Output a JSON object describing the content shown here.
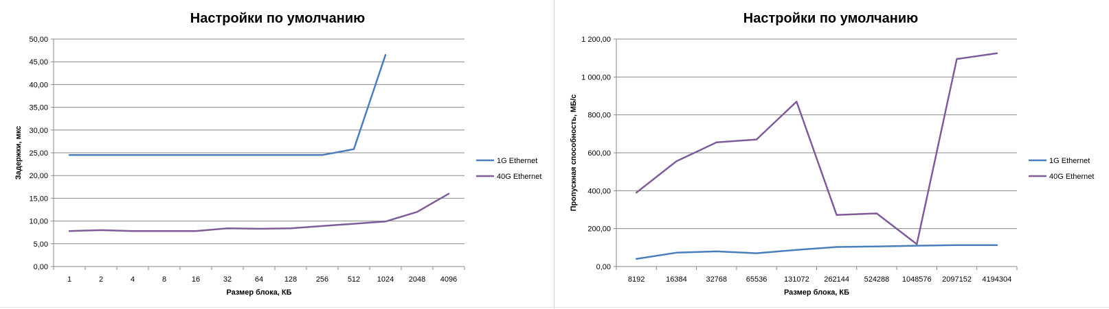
{
  "chart_data": [
    {
      "type": "line",
      "title": "Настройки по умолчанию",
      "xlabel": "Размер блока, КБ",
      "ylabel": "Задержки, мкс",
      "categories": [
        "1",
        "2",
        "4",
        "8",
        "16",
        "32",
        "64",
        "128",
        "256",
        "512",
        "1024",
        "2048",
        "4096"
      ],
      "ylim": [
        0,
        50
      ],
      "yticks": [
        "0,00",
        "5,00",
        "10,00",
        "15,00",
        "20,00",
        "25,00",
        "30,00",
        "35,00",
        "40,00",
        "45,00",
        "50,00"
      ],
      "grid": true,
      "legend": "right",
      "series": [
        {
          "name": "1G Ethernet",
          "color": "#4a7ebb",
          "values": [
            24.5,
            24.5,
            24.5,
            24.5,
            24.5,
            24.5,
            24.5,
            24.5,
            24.5,
            25.8,
            46.5,
            null,
            null
          ]
        },
        {
          "name": "40G Ethernet",
          "color": "#7d5c99",
          "values": [
            7.8,
            8.0,
            7.8,
            7.8,
            7.8,
            8.4,
            8.3,
            8.4,
            8.9,
            9.4,
            9.9,
            12.0,
            16.0
          ]
        }
      ]
    },
    {
      "type": "line",
      "title": "Настройки по умолчанию",
      "xlabel": "Размер блока, КБ",
      "ylabel": "Пропускная способность, МБ/с",
      "categories": [
        "8192",
        "16384",
        "32768",
        "65536",
        "131072",
        "262144",
        "524288",
        "1048576",
        "2097152",
        "4194304"
      ],
      "ylim": [
        0,
        1200
      ],
      "yticks": [
        "0,00",
        "200,00",
        "400,00",
        "600,00",
        "800,00",
        "1 000,00",
        "1 200,00"
      ],
      "grid": true,
      "legend": "right",
      "series": [
        {
          "name": "1G Ethernet",
          "color": "#4a7ebb",
          "values": [
            40,
            73,
            80,
            70,
            88,
            103,
            106,
            110,
            113,
            113
          ]
        },
        {
          "name": "40G Ethernet",
          "color": "#7d5c99",
          "values": [
            390,
            555,
            655,
            670,
            870,
            272,
            280,
            118,
            1095,
            1125
          ]
        }
      ]
    }
  ]
}
